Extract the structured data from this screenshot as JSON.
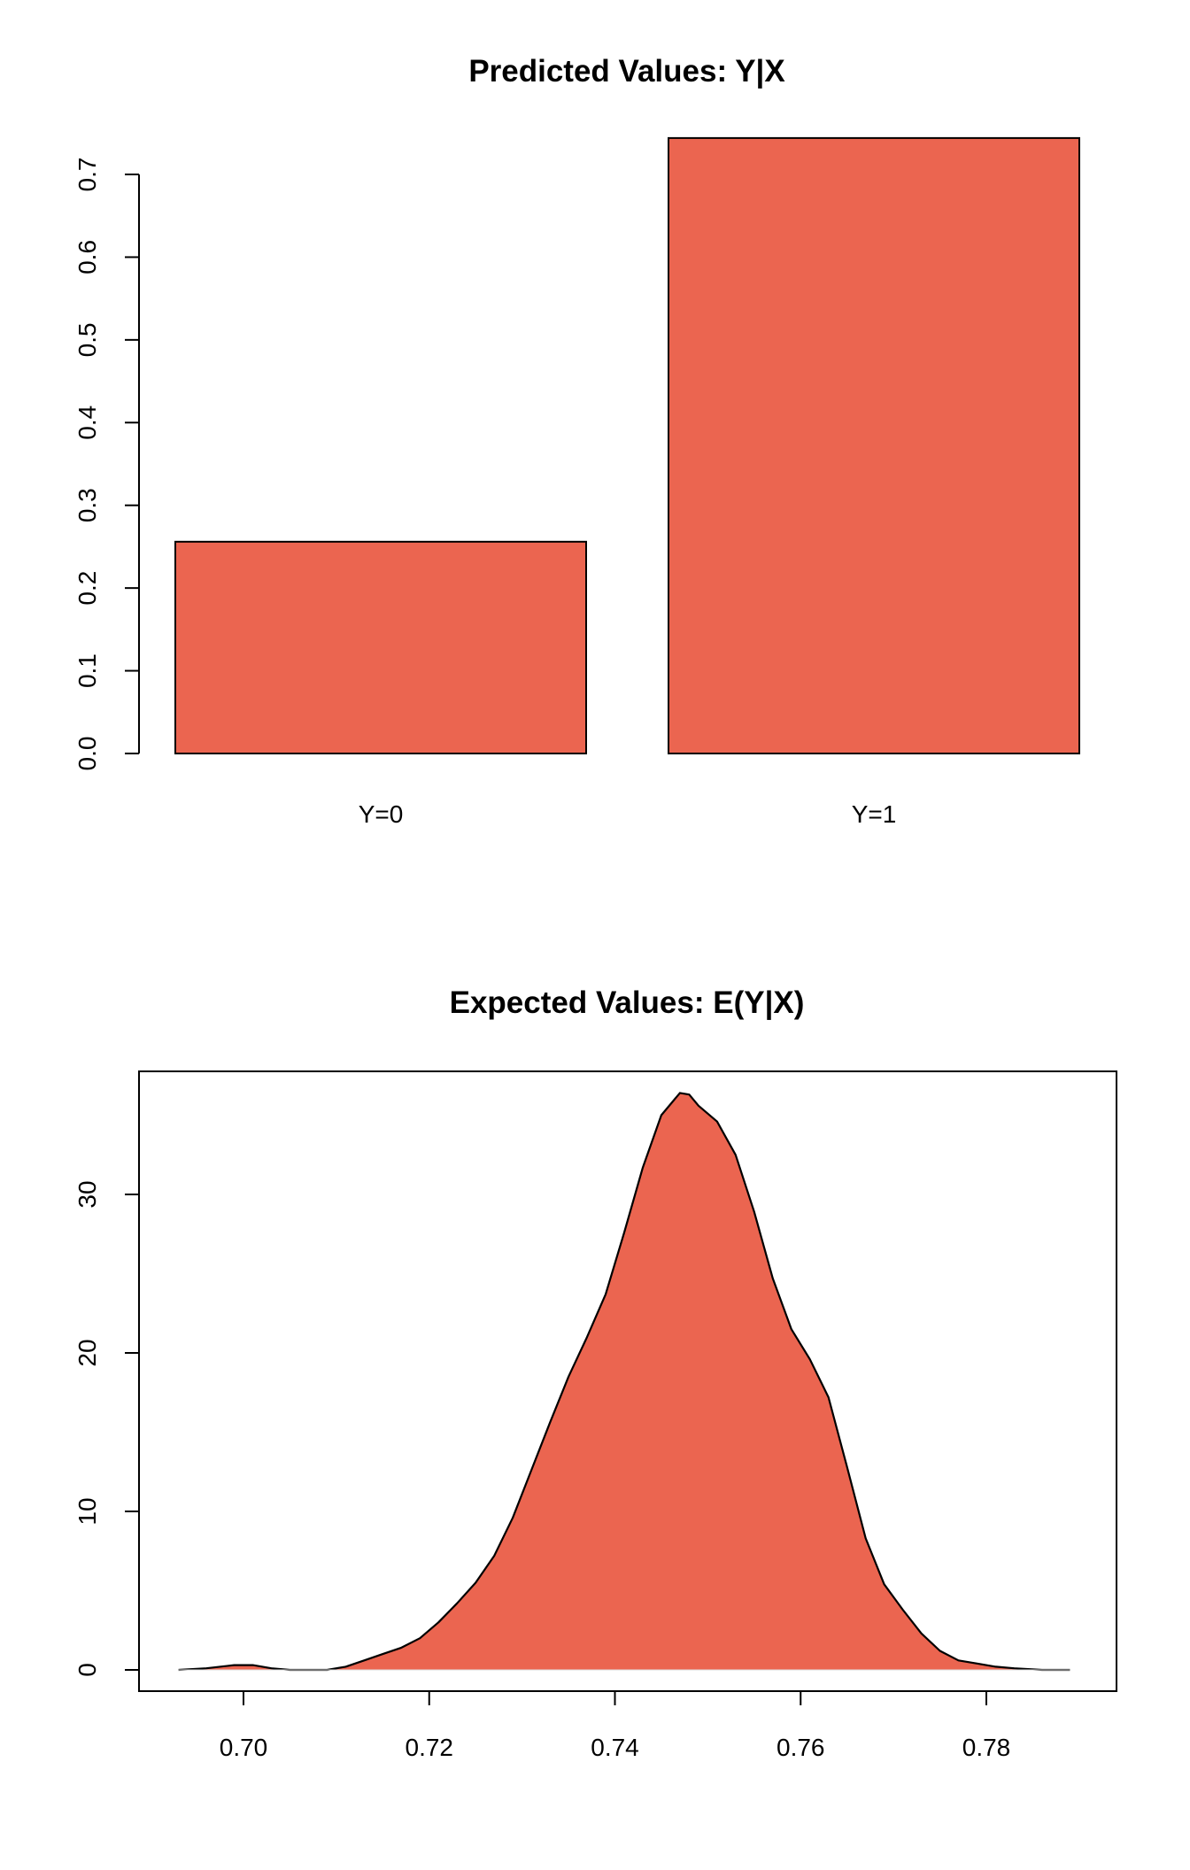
{
  "chart_data": [
    {
      "type": "bar",
      "title": "Predicted Values: Y|X",
      "xlabel": "",
      "ylabel": "",
      "categories": [
        "Y=0",
        "Y=1"
      ],
      "values": [
        0.256,
        0.744
      ],
      "ylim": [
        0,
        0.7
      ],
      "yticks": [
        0.0,
        0.1,
        0.2,
        0.3,
        0.4,
        0.5,
        0.6,
        0.7
      ],
      "ytick_labels": [
        "0.0",
        "0.1",
        "0.2",
        "0.3",
        "0.4",
        "0.5",
        "0.6",
        "0.7"
      ],
      "bar_color": "#EB6550",
      "grid": false,
      "box": false
    },
    {
      "type": "area",
      "title": "Expected Values: E(Y|X)",
      "xlabel": "",
      "ylabel": "",
      "x": [
        0.693,
        0.696,
        0.699,
        0.701,
        0.703,
        0.705,
        0.707,
        0.709,
        0.711,
        0.713,
        0.715,
        0.717,
        0.719,
        0.721,
        0.723,
        0.725,
        0.727,
        0.729,
        0.731,
        0.733,
        0.735,
        0.737,
        0.739,
        0.741,
        0.743,
        0.745,
        0.747,
        0.748,
        0.749,
        0.751,
        0.753,
        0.755,
        0.757,
        0.759,
        0.761,
        0.763,
        0.765,
        0.767,
        0.769,
        0.771,
        0.773,
        0.775,
        0.777,
        0.779,
        0.781,
        0.783,
        0.786,
        0.789
      ],
      "y": [
        0.0,
        0.1,
        0.3,
        0.3,
        0.1,
        0.0,
        0.0,
        0.0,
        0.2,
        0.6,
        1.0,
        1.4,
        2.0,
        3.0,
        4.2,
        5.5,
        7.2,
        9.6,
        12.6,
        15.6,
        18.5,
        21.0,
        23.7,
        27.6,
        31.7,
        35.0,
        36.4,
        36.3,
        35.6,
        34.6,
        32.5,
        28.9,
        24.7,
        21.5,
        19.6,
        17.2,
        12.8,
        8.3,
        5.4,
        3.8,
        2.3,
        1.2,
        0.6,
        0.4,
        0.2,
        0.1,
        0.0,
        0.0
      ],
      "xlim": [
        0.69,
        0.79
      ],
      "ylim": [
        0,
        36
      ],
      "xticks": [
        0.7,
        0.72,
        0.74,
        0.76,
        0.78
      ],
      "xtick_labels": [
        "0.70",
        "0.72",
        "0.74",
        "0.76",
        "0.78"
      ],
      "yticks": [
        0,
        10,
        20,
        30
      ],
      "ytick_labels": [
        "0",
        "10",
        "20",
        "30"
      ],
      "fill_color": "#EB6550",
      "grid": false,
      "box": true
    }
  ]
}
